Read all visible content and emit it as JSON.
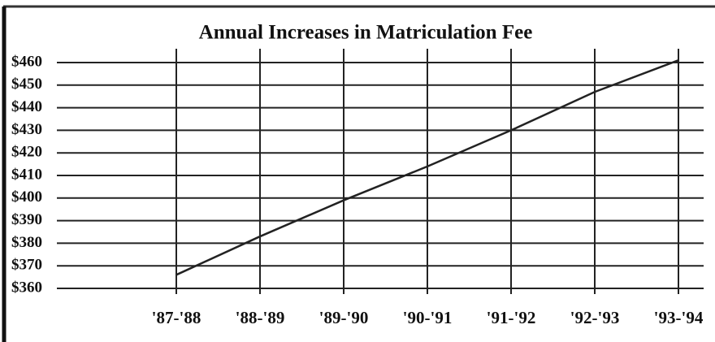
{
  "chart_data": {
    "type": "line",
    "title": "Annual Increases in Matriculation Fee",
    "categories": [
      "'87-'88",
      "'88-'89",
      "'89-'90",
      "'90-'91",
      "'91-'92",
      "'92-'93",
      "'93-'94"
    ],
    "series": [
      {
        "name": "Matriculation Fee",
        "color": "#222222",
        "values": [
          366,
          383,
          399,
          414,
          430,
          447,
          461
        ]
      }
    ],
    "ylim": [
      360,
      460
    ],
    "yticks": [
      {
        "value": 360,
        "label": "$360"
      },
      {
        "value": 370,
        "label": "$370"
      },
      {
        "value": 380,
        "label": "$380"
      },
      {
        "value": 390,
        "label": "$390"
      },
      {
        "value": 400,
        "label": "$400"
      },
      {
        "value": 410,
        "label": "$410"
      },
      {
        "value": 420,
        "label": "$420"
      },
      {
        "value": 430,
        "label": "$430"
      },
      {
        "value": 440,
        "label": "$440"
      },
      {
        "value": 450,
        "label": "$450"
      },
      {
        "value": 460,
        "label": "$460"
      }
    ],
    "grid": true
  }
}
